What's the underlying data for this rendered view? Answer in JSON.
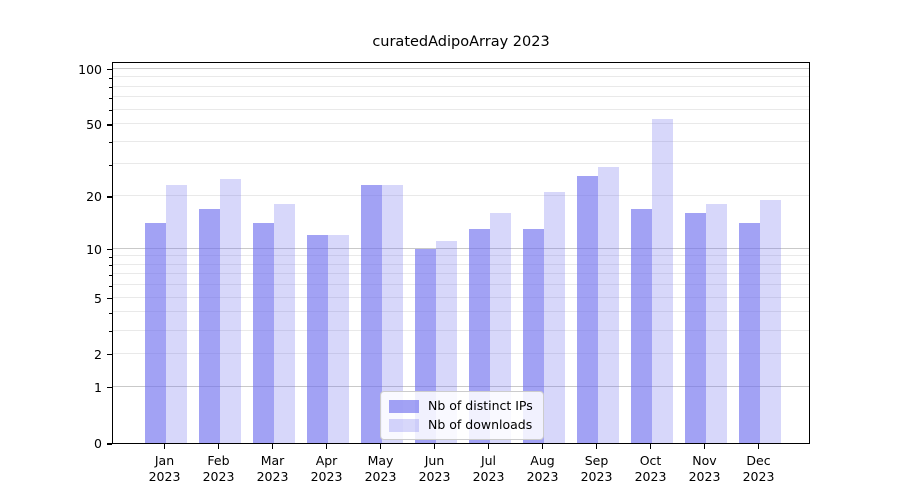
{
  "title": "curatedAdipoArray 2023",
  "legend": {
    "items": [
      {
        "label": "Nb of distinct IPs",
        "color_key": "ips"
      },
      {
        "label": "Nb of downloads",
        "color_key": "downloads"
      }
    ]
  },
  "colors": {
    "ips": "rgba(112,112,238,0.65)",
    "downloads": "rgba(112,112,238,0.28)",
    "major_grid": "#c9c9c9",
    "minor_grid": "#e9e9e9",
    "axis": "#000000"
  },
  "y_axis": {
    "tick_labels": [
      "100",
      "50",
      "20",
      "10",
      "5",
      "2",
      "1",
      "0"
    ],
    "tick_values": [
      100,
      50,
      20,
      10,
      5,
      2,
      1,
      0
    ],
    "minor_grid_values": [
      2,
      3,
      4,
      5,
      6,
      7,
      8,
      9,
      20,
      30,
      40,
      50,
      60,
      70,
      80,
      90
    ],
    "major_grid_values": [
      1,
      10,
      100
    ],
    "minor_tick_values": [
      3,
      4,
      6,
      7,
      8,
      9,
      30,
      40,
      60,
      70,
      80,
      90
    ],
    "scale": "log10(value+1)",
    "top_value": 110
  },
  "chart_data": {
    "type": "bar",
    "categories": [
      "Jan 2023",
      "Feb 2023",
      "Mar 2023",
      "Apr 2023",
      "May 2023",
      "Jun 2023",
      "Jul 2023",
      "Aug 2023",
      "Sep 2023",
      "Oct 2023",
      "Nov 2023",
      "Dec 2023"
    ],
    "series": [
      {
        "name": "Nb of distinct IPs",
        "values": [
          14,
          17,
          14,
          12,
          23,
          10,
          13,
          13,
          26,
          17,
          16,
          14
        ]
      },
      {
        "name": "Nb of downloads",
        "values": [
          23,
          25,
          18,
          12,
          23,
          11,
          16,
          21,
          29,
          53,
          18,
          19
        ]
      }
    ],
    "title": "curatedAdipoArray 2023",
    "xlabel": "",
    "ylabel": "",
    "yscale": "log1p",
    "ylim": [
      0,
      110
    ],
    "yticks": [
      0,
      1,
      2,
      5,
      10,
      20,
      50,
      100
    ],
    "grid": true,
    "legend_position": "lower center"
  }
}
